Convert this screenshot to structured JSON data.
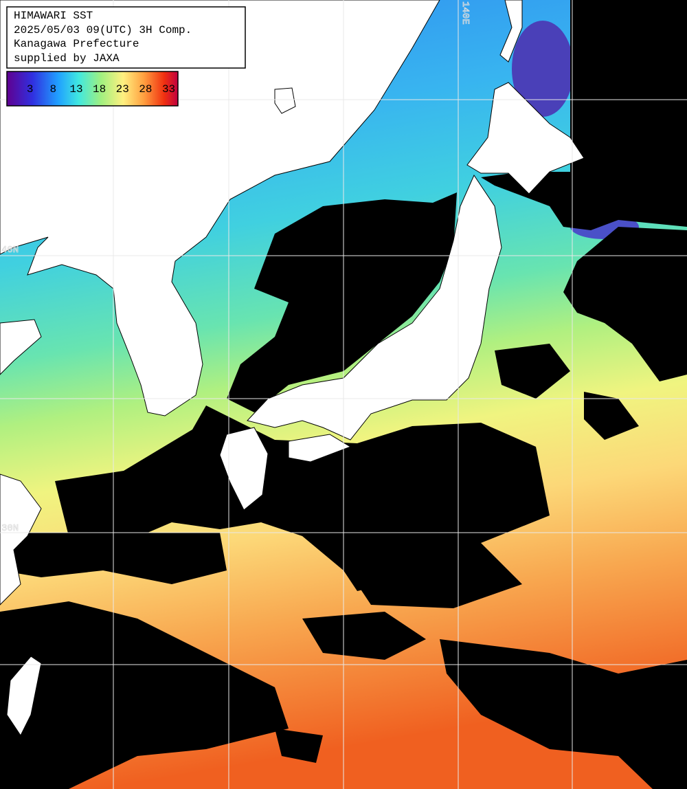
{
  "header": {
    "lines": [
      "HIMAWARI SST",
      "2025/05/03 09(UTC) 3H Comp.",
      "Kanagawa Prefecture",
      "supplied by JAXA"
    ]
  },
  "colorbar": {
    "range": [
      -2,
      35
    ],
    "ticks": [
      3,
      8,
      13,
      18,
      23,
      28,
      33
    ]
  },
  "grid_labels": {
    "lat": [
      "40N",
      "30N"
    ],
    "lon": [
      "140E"
    ]
  }
}
